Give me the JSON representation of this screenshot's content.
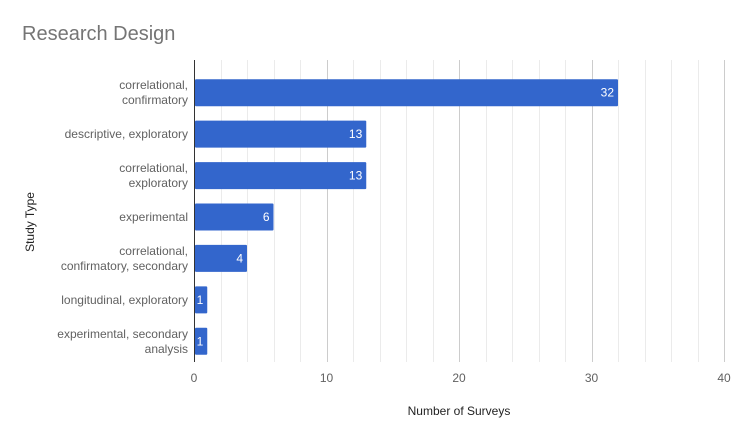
{
  "chart_data": {
    "type": "bar",
    "orientation": "horizontal",
    "title": "Research Design",
    "xlabel": "Number of Surveys",
    "ylabel": "Study Type",
    "categories": [
      [
        "correlational,",
        "confirmatory"
      ],
      [
        "descriptive, exploratory"
      ],
      [
        "correlational,",
        "exploratory"
      ],
      [
        "experimental"
      ],
      [
        "correlational,",
        "confirmatory, secondary"
      ],
      [
        "longitudinal, exploratory"
      ],
      [
        "experimental, secondary",
        "analysis"
      ]
    ],
    "values": [
      32,
      13,
      13,
      6,
      4,
      1,
      1
    ],
    "xlim": [
      0,
      40
    ],
    "xticks": [
      "0",
      "10",
      "20",
      "30",
      "40"
    ],
    "grid": true,
    "legend": "none",
    "bar_color": "#3366cc",
    "data_labels": true
  }
}
